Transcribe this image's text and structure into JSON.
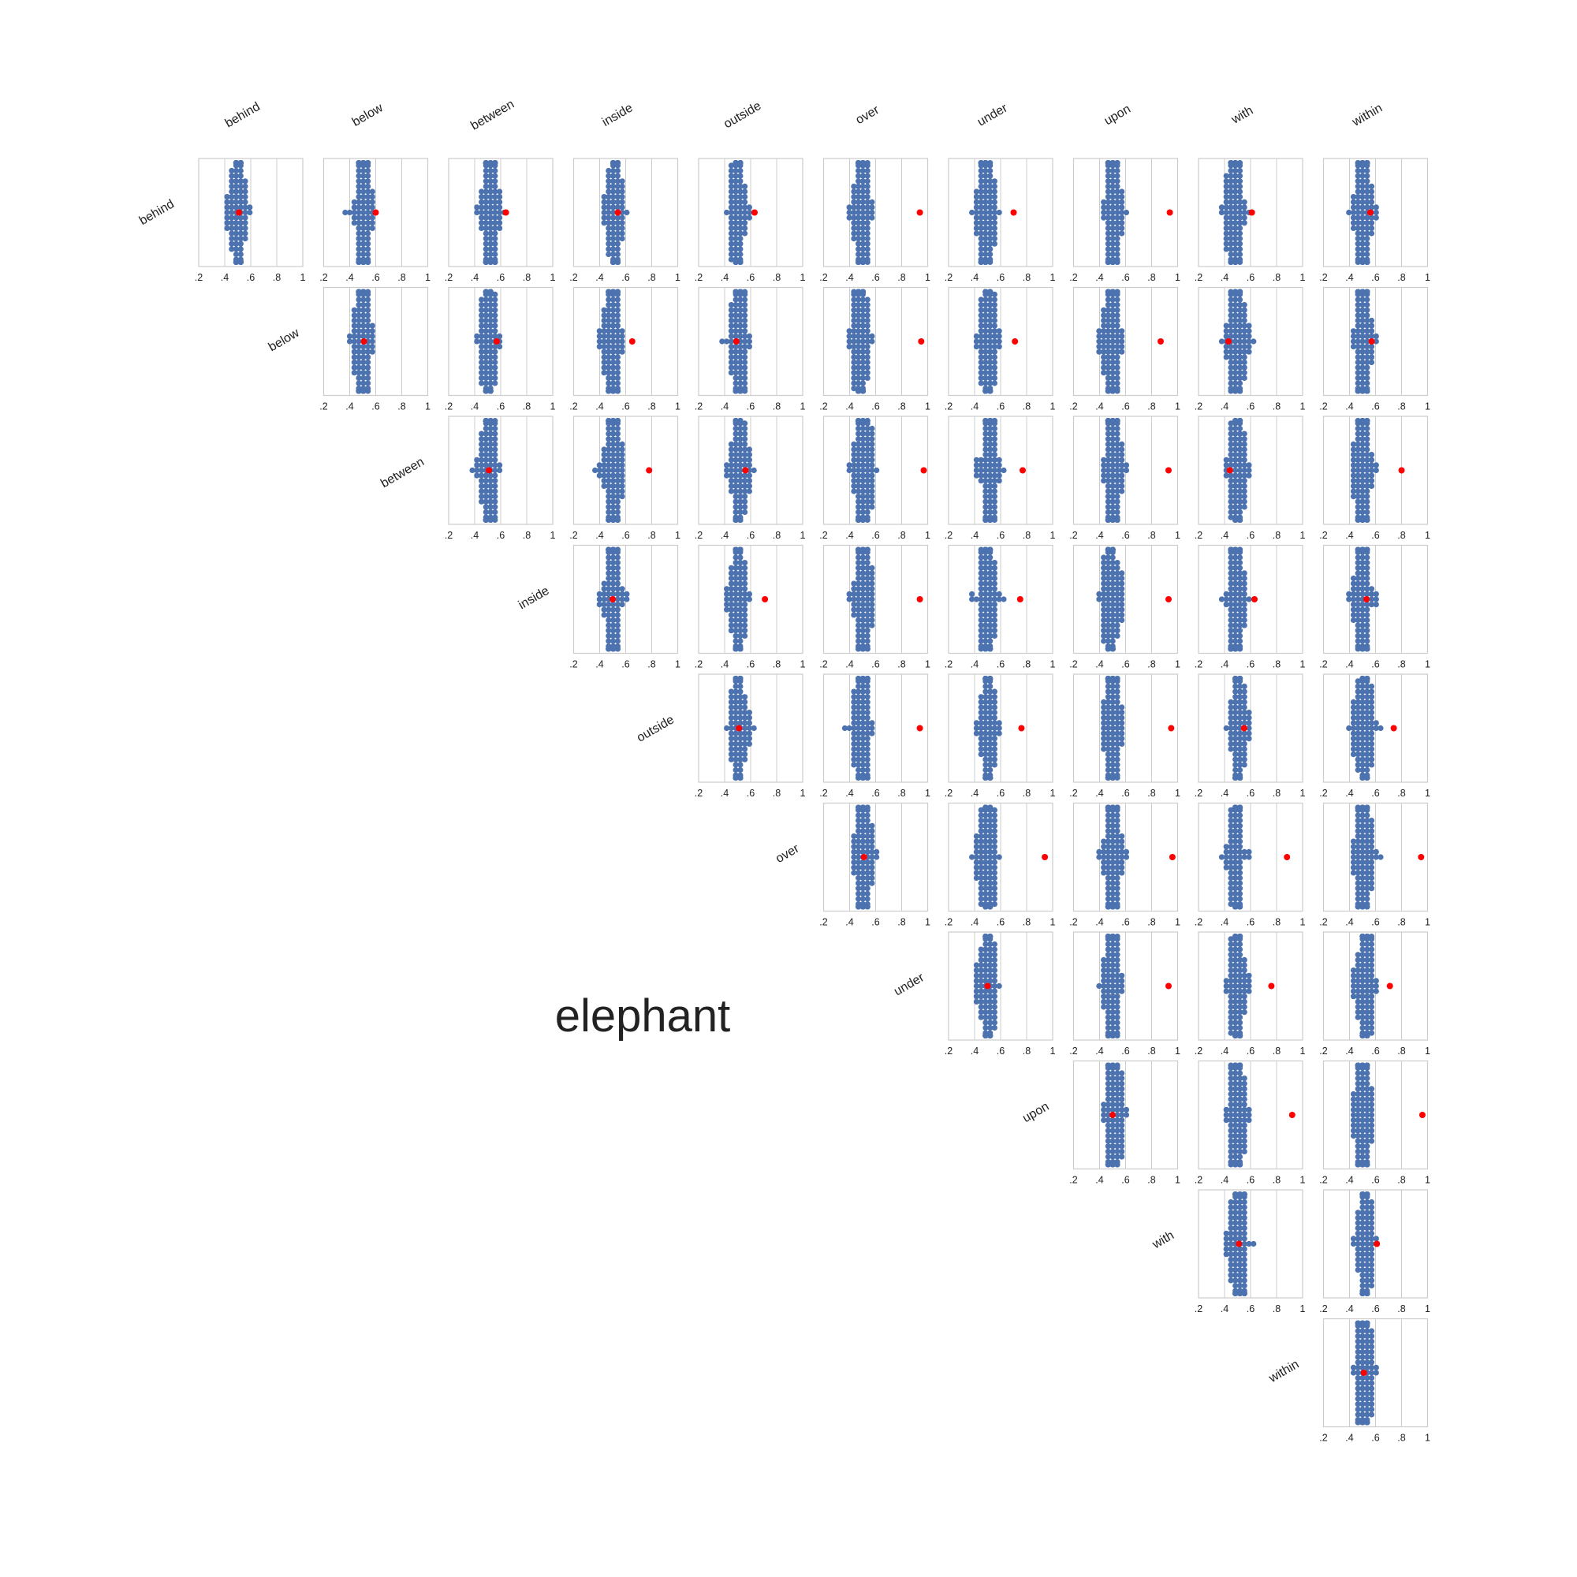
{
  "title": "elephant",
  "labels": [
    "behind",
    "below",
    "between",
    "inside",
    "outside",
    "over",
    "under",
    "upon",
    "with",
    "within"
  ],
  "x_ticks": [
    ".2",
    ".4",
    ".6",
    ".8",
    "1"
  ],
  "colors": {
    "swarm": "#4c72b0",
    "marker": "#ff0000",
    "frame": "#cccccc",
    "grid": "#cccccc",
    "text": "#222222"
  },
  "chart_data": {
    "type": "scatter",
    "subtype": "swarm-plot-matrix (upper triangle)",
    "xlim": [
      0.2,
      1.0
    ],
    "grid": "vertical lines at tick positions",
    "note_cells": "Each cell: swarm of ~100 sample scores with center (mean) and a red marker (observed score); row label = first preposition, column label = second preposition.",
    "cells": [
      {
        "row": "behind",
        "col": "behind",
        "center": 0.5,
        "marker": 0.51
      },
      {
        "row": "behind",
        "col": "below",
        "center": 0.5,
        "marker": 0.6
      },
      {
        "row": "behind",
        "col": "between",
        "center": 0.52,
        "marker": 0.64
      },
      {
        "row": "behind",
        "col": "inside",
        "center": 0.52,
        "marker": 0.54
      },
      {
        "row": "behind",
        "col": "outside",
        "center": 0.5,
        "marker": 0.63
      },
      {
        "row": "behind",
        "col": "over",
        "center": 0.49,
        "marker": 0.94
      },
      {
        "row": "behind",
        "col": "under",
        "center": 0.49,
        "marker": 0.7
      },
      {
        "row": "behind",
        "col": "upon",
        "center": 0.5,
        "marker": 0.94
      },
      {
        "row": "behind",
        "col": "with",
        "center": 0.48,
        "marker": 0.61
      },
      {
        "row": "behind",
        "col": "within",
        "center": 0.51,
        "marker": 0.56
      },
      {
        "row": "below",
        "col": "below",
        "center": 0.5,
        "marker": 0.51
      },
      {
        "row": "below",
        "col": "between",
        "center": 0.5,
        "marker": 0.57
      },
      {
        "row": "below",
        "col": "inside",
        "center": 0.5,
        "marker": 0.65
      },
      {
        "row": "below",
        "col": "outside",
        "center": 0.51,
        "marker": 0.49
      },
      {
        "row": "below",
        "col": "over",
        "center": 0.48,
        "marker": 0.95
      },
      {
        "row": "below",
        "col": "under",
        "center": 0.5,
        "marker": 0.71
      },
      {
        "row": "below",
        "col": "upon",
        "center": 0.49,
        "marker": 0.87
      },
      {
        "row": "below",
        "col": "with",
        "center": 0.5,
        "marker": 0.43
      },
      {
        "row": "below",
        "col": "within",
        "center": 0.51,
        "marker": 0.57
      },
      {
        "row": "between",
        "col": "between",
        "center": 0.51,
        "marker": 0.51
      },
      {
        "row": "between",
        "col": "inside",
        "center": 0.5,
        "marker": 0.78
      },
      {
        "row": "between",
        "col": "outside",
        "center": 0.51,
        "marker": 0.56
      },
      {
        "row": "between",
        "col": "over",
        "center": 0.51,
        "marker": 0.97
      },
      {
        "row": "between",
        "col": "under",
        "center": 0.51,
        "marker": 0.77
      },
      {
        "row": "between",
        "col": "upon",
        "center": 0.5,
        "marker": 0.93
      },
      {
        "row": "between",
        "col": "with",
        "center": 0.5,
        "marker": 0.44
      },
      {
        "row": "between",
        "col": "within",
        "center": 0.5,
        "marker": 0.8
      },
      {
        "row": "inside",
        "col": "inside",
        "center": 0.5,
        "marker": 0.5
      },
      {
        "row": "inside",
        "col": "outside",
        "center": 0.5,
        "marker": 0.71
      },
      {
        "row": "inside",
        "col": "over",
        "center": 0.5,
        "marker": 0.94
      },
      {
        "row": "inside",
        "col": "under",
        "center": 0.5,
        "marker": 0.75
      },
      {
        "row": "inside",
        "col": "upon",
        "center": 0.49,
        "marker": 0.93
      },
      {
        "row": "inside",
        "col": "with",
        "center": 0.49,
        "marker": 0.63
      },
      {
        "row": "inside",
        "col": "within",
        "center": 0.5,
        "marker": 0.53
      },
      {
        "row": "outside",
        "col": "outside",
        "center": 0.51,
        "marker": 0.51
      },
      {
        "row": "outside",
        "col": "over",
        "center": 0.49,
        "marker": 0.94
      },
      {
        "row": "outside",
        "col": "under",
        "center": 0.5,
        "marker": 0.76
      },
      {
        "row": "outside",
        "col": "upon",
        "center": 0.5,
        "marker": 0.95
      },
      {
        "row": "outside",
        "col": "with",
        "center": 0.51,
        "marker": 0.55
      },
      {
        "row": "outside",
        "col": "within",
        "center": 0.51,
        "marker": 0.74
      },
      {
        "row": "over",
        "col": "over",
        "center": 0.51,
        "marker": 0.51
      },
      {
        "row": "over",
        "col": "under",
        "center": 0.5,
        "marker": 0.94
      },
      {
        "row": "over",
        "col": "upon",
        "center": 0.5,
        "marker": 0.96
      },
      {
        "row": "over",
        "col": "with",
        "center": 0.49,
        "marker": 0.88
      },
      {
        "row": "over",
        "col": "within",
        "center": 0.51,
        "marker": 0.95
      },
      {
        "row": "under",
        "col": "under",
        "center": 0.5,
        "marker": 0.5
      },
      {
        "row": "under",
        "col": "upon",
        "center": 0.5,
        "marker": 0.93
      },
      {
        "row": "under",
        "col": "with",
        "center": 0.5,
        "marker": 0.76
      },
      {
        "row": "under",
        "col": "within",
        "center": 0.51,
        "marker": 0.71
      },
      {
        "row": "upon",
        "col": "upon",
        "center": 0.5,
        "marker": 0.5
      },
      {
        "row": "upon",
        "col": "with",
        "center": 0.5,
        "marker": 0.92
      },
      {
        "row": "upon",
        "col": "within",
        "center": 0.5,
        "marker": 0.96
      },
      {
        "row": "with",
        "col": "with",
        "center": 0.51,
        "marker": 0.51
      },
      {
        "row": "with",
        "col": "within",
        "center": 0.52,
        "marker": 0.61
      },
      {
        "row": "within",
        "col": "within",
        "center": 0.51,
        "marker": 0.51
      }
    ]
  }
}
